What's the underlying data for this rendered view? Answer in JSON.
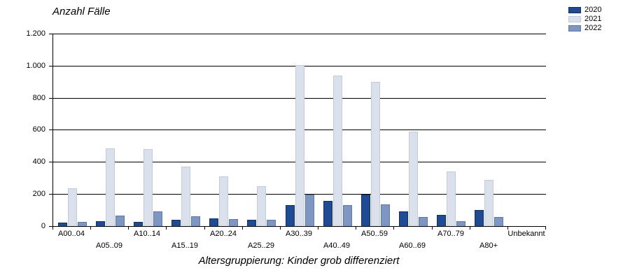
{
  "chart_data": {
    "type": "bar",
    "title": "Anzahl Fälle",
    "xlabel": "Altersgruppierung: Kinder grob differenziert",
    "ylim": [
      0,
      1200
    ],
    "grid": true,
    "legend_position": "top-right",
    "yticks": [
      {
        "value": 1200,
        "label": "1.200"
      },
      {
        "value": 1000,
        "label": "1.000"
      },
      {
        "value": 800,
        "label": "800"
      },
      {
        "value": 600,
        "label": "600"
      },
      {
        "value": 400,
        "label": "400"
      },
      {
        "value": 200,
        "label": "200"
      },
      {
        "value": 0,
        "label": "0"
      }
    ],
    "categories": [
      "A00..04",
      "A05..09",
      "A10..14",
      "A15..19",
      "A20..24",
      "A25..29",
      "A30..39",
      "A40..49",
      "A50..59",
      "A60..69",
      "A70..79",
      "A80+",
      "Unbekannt"
    ],
    "series": [
      {
        "name": "2020",
        "color": "#1F4A94",
        "border": "#16305E",
        "values": [
          20,
          30,
          25,
          40,
          50,
          40,
          130,
          155,
          195,
          90,
          70,
          100,
          0
        ]
      },
      {
        "name": "2021",
        "color": "#DAE1EC",
        "border": "#C2CBDA",
        "values": [
          235,
          485,
          480,
          370,
          310,
          250,
          1005,
          940,
          900,
          590,
          340,
          290,
          0
        ]
      },
      {
        "name": "2022",
        "color": "#7D96C4",
        "border": "#64789E",
        "values": [
          25,
          65,
          90,
          60,
          45,
          40,
          195,
          130,
          135,
          55,
          30,
          55,
          0
        ]
      }
    ]
  },
  "colors": {
    "axis": "#000000",
    "background": "#ffffff"
  }
}
